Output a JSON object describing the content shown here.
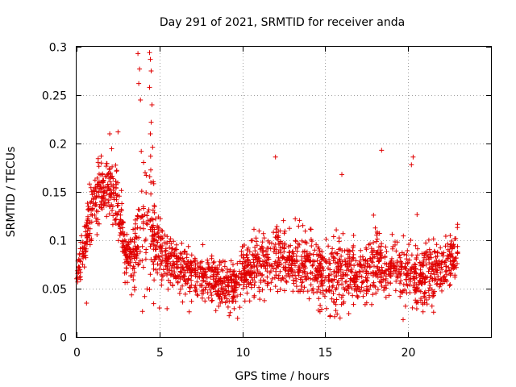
{
  "chart_data": {
    "type": "scatter",
    "title": "Day 291 of 2021, SRMTID for receiver anda",
    "xlabel": "GPS time / hours",
    "ylabel": "SRMTID / TECUs",
    "xlim": [
      0,
      25
    ],
    "ylim": [
      0,
      0.3
    ],
    "x_ticks": [
      0,
      5,
      10,
      15,
      20
    ],
    "x_tick_labels": [
      "0",
      "5",
      "10",
      "15",
      "20"
    ],
    "y_ticks": [
      0,
      0.05,
      0.1,
      0.15,
      0.2,
      0.25,
      0.3
    ],
    "y_tick_labels": [
      "0",
      "0.05",
      "0.1",
      "0.15",
      "0.2",
      "0.25",
      "0.3"
    ],
    "grid": true,
    "marker": "plus",
    "color": "#e00000",
    "series": [
      {
        "name": "SRMTID",
        "profile_hours": [
          0.0,
          0.3,
          0.6,
          1.0,
          1.5,
          2.0,
          2.5,
          3.0,
          3.5,
          4.0,
          4.5,
          5.0,
          5.5,
          6.0,
          7.0,
          8.0,
          9.0,
          9.5,
          10.0,
          11.0,
          12.0,
          13.0,
          14.0,
          15.0,
          16.0,
          17.0,
          18.0,
          19.0,
          20.0,
          21.0,
          22.0,
          23.0
        ],
        "profile_mean": [
          0.065,
          0.085,
          0.1,
          0.14,
          0.15,
          0.16,
          0.14,
          0.08,
          0.085,
          0.12,
          0.11,
          0.09,
          0.08,
          0.07,
          0.065,
          0.06,
          0.055,
          0.055,
          0.065,
          0.075,
          0.085,
          0.075,
          0.075,
          0.065,
          0.07,
          0.065,
          0.075,
          0.07,
          0.065,
          0.06,
          0.07,
          0.085
        ],
        "profile_spread": [
          0.015,
          0.02,
          0.02,
          0.03,
          0.025,
          0.03,
          0.03,
          0.02,
          0.03,
          0.06,
          0.06,
          0.03,
          0.025,
          0.02,
          0.02,
          0.02,
          0.02,
          0.02,
          0.025,
          0.025,
          0.03,
          0.025,
          0.025,
          0.025,
          0.025,
          0.025,
          0.03,
          0.025,
          0.025,
          0.025,
          0.025,
          0.025
        ],
        "extremes": [
          {
            "x": 3.7,
            "y": 0.293
          },
          {
            "x": 3.8,
            "y": 0.277
          },
          {
            "x": 3.75,
            "y": 0.262
          },
          {
            "x": 3.85,
            "y": 0.245
          },
          {
            "x": 4.4,
            "y": 0.294
          },
          {
            "x": 4.45,
            "y": 0.287
          },
          {
            "x": 4.5,
            "y": 0.275
          },
          {
            "x": 4.4,
            "y": 0.258
          },
          {
            "x": 4.55,
            "y": 0.24
          },
          {
            "x": 4.5,
            "y": 0.222
          },
          {
            "x": 4.45,
            "y": 0.21
          },
          {
            "x": 2.5,
            "y": 0.212
          },
          {
            "x": 2.0,
            "y": 0.21
          },
          {
            "x": 12.0,
            "y": 0.186
          },
          {
            "x": 18.4,
            "y": 0.193
          },
          {
            "x": 20.3,
            "y": 0.186
          },
          {
            "x": 16.0,
            "y": 0.168
          },
          {
            "x": 20.2,
            "y": 0.178
          },
          {
            "x": 19.7,
            "y": 0.018
          },
          {
            "x": 15.3,
            "y": 0.022
          },
          {
            "x": 9.2,
            "y": 0.022
          },
          {
            "x": 0.6,
            "y": 0.035
          },
          {
            "x": 20.9,
            "y": 0.026
          },
          {
            "x": 5.0,
            "y": 0.03
          }
        ]
      }
    ]
  }
}
